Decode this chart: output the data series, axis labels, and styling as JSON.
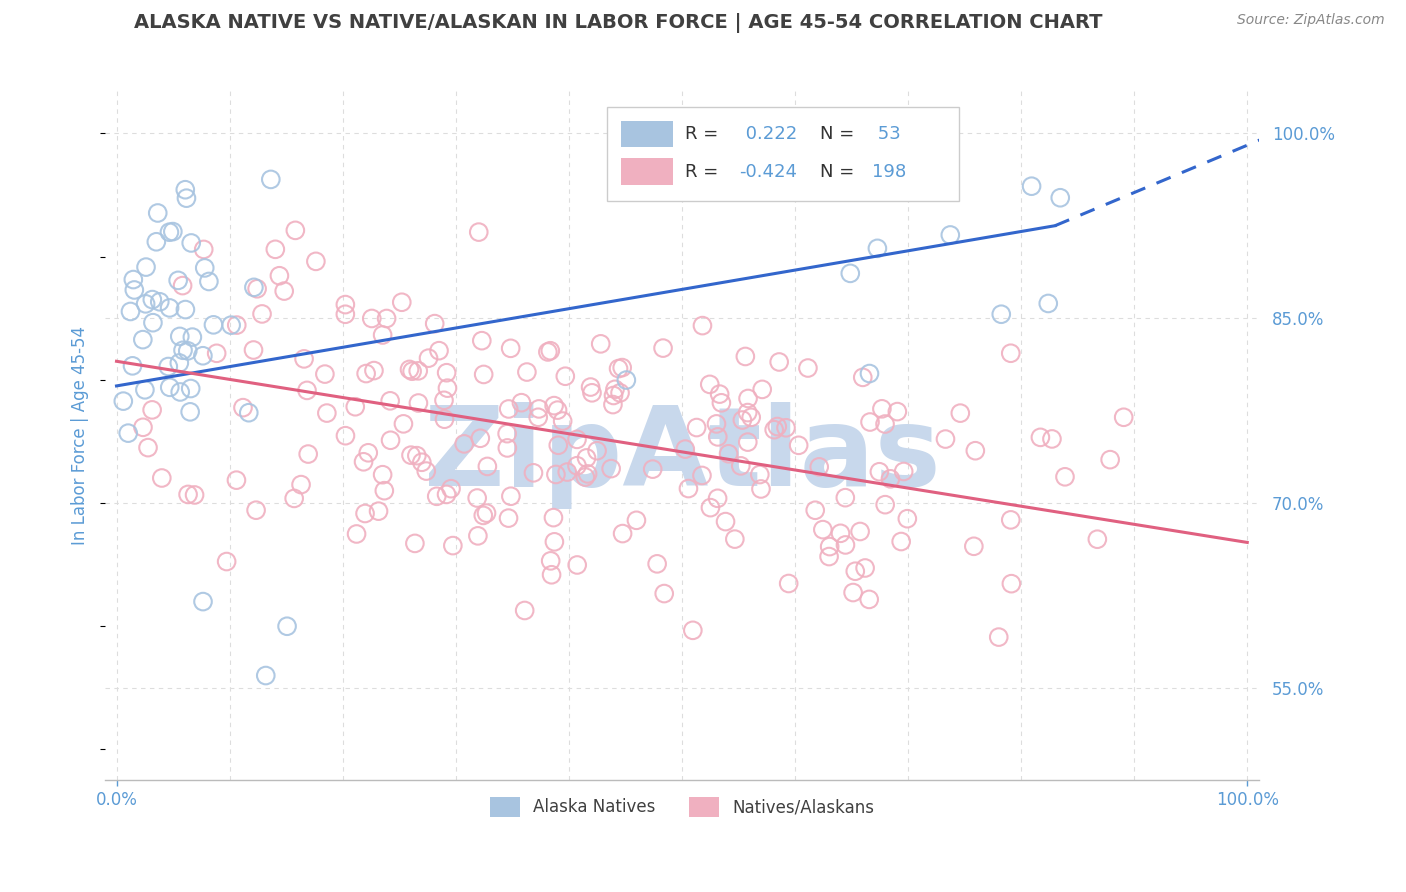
{
  "title": "ALASKA NATIVE VS NATIVE/ALASKAN IN LABOR FORCE | AGE 45-54 CORRELATION CHART",
  "source_text": "Source: ZipAtlas.com",
  "ylabel": "In Labor Force | Age 45-54",
  "xlim": [
    -0.01,
    1.01
  ],
  "ylim": [
    0.475,
    1.035
  ],
  "x_tick_labels": [
    "0.0%",
    "100.0%"
  ],
  "y_tick_labels_right": [
    "55.0%",
    "70.0%",
    "85.0%",
    "100.0%"
  ],
  "y_tick_values_right": [
    0.55,
    0.7,
    0.85,
    1.0
  ],
  "blue_color": "#A8C4E0",
  "pink_color": "#F0B0C0",
  "trend_blue": "#3366CC",
  "trend_pink": "#E06080",
  "watermark_color": "#C8D8EC",
  "background_color": "#FFFFFF",
  "grid_color": "#DDDDDD",
  "title_color": "#404040",
  "axis_label_color": "#5B9BD5",
  "legend_text_color": "#333333",
  "blue_r": 0.222,
  "blue_n": 53,
  "pink_r": -0.424,
  "pink_n": 198,
  "blue_trend_x0": 0.0,
  "blue_trend_y0": 0.795,
  "blue_trend_x1_solid": 0.83,
  "blue_trend_y1_solid": 0.925,
  "blue_trend_x1_dash": 1.02,
  "blue_trend_y1_dash": 0.998,
  "pink_trend_x0": 0.0,
  "pink_trend_y0": 0.815,
  "pink_trend_x1": 1.0,
  "pink_trend_y1": 0.668
}
